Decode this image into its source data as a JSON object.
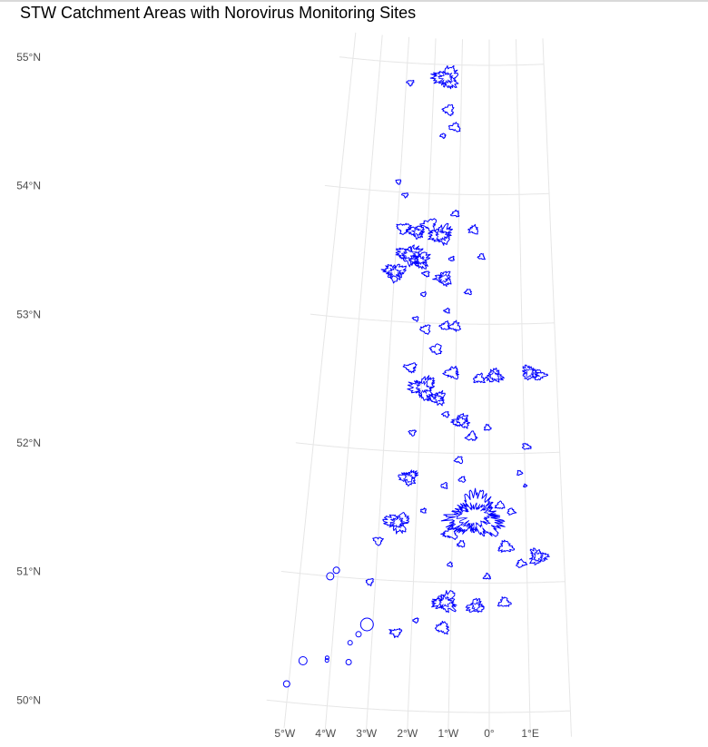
{
  "title": "STW Catchment Areas with Norovirus Monitoring Sites",
  "axes": {
    "lat_labels": [
      "55°N",
      "54°N",
      "53°N",
      "52°N",
      "51°N",
      "50°N"
    ],
    "lon_labels": [
      "5°W",
      "4°W",
      "3°W",
      "2°W",
      "1°W",
      "0°",
      "1°E"
    ]
  },
  "colors": {
    "catchment_outline": "#0000ff",
    "site_marker": "#0000ff",
    "graticule": "#e6e6e6",
    "tick_text": "#4d4d4d"
  },
  "map": {
    "projection": "conic",
    "lat_range": [
      50,
      55
    ],
    "lon_range": [
      -5,
      1
    ],
    "catchments": [
      {
        "lon": -1.55,
        "lat": 54.9,
        "size": 0.22
      },
      {
        "lon": -1.45,
        "lat": 54.65,
        "size": 0.1
      },
      {
        "lon": -1.2,
        "lat": 54.52,
        "size": 0.09
      },
      {
        "lon": -2.85,
        "lat": 54.85,
        "size": 0.06
      },
      {
        "lon": -1.6,
        "lat": 54.45,
        "size": 0.05
      },
      {
        "lon": -3.05,
        "lat": 54.08,
        "size": 0.05
      },
      {
        "lon": -2.8,
        "lat": 53.98,
        "size": 0.05
      },
      {
        "lon": -1.1,
        "lat": 53.85,
        "size": 0.07
      },
      {
        "lon": -2.8,
        "lat": 53.72,
        "size": 0.12
      },
      {
        "lon": -2.35,
        "lat": 53.7,
        "size": 0.14
      },
      {
        "lon": -1.95,
        "lat": 53.76,
        "size": 0.12
      },
      {
        "lon": -1.55,
        "lat": 53.68,
        "size": 0.2
      },
      {
        "lon": -2.55,
        "lat": 53.52,
        "size": 0.2
      },
      {
        "lon": -2.2,
        "lat": 53.48,
        "size": 0.16
      },
      {
        "lon": -3.0,
        "lat": 53.38,
        "size": 0.18
      },
      {
        "lon": -1.45,
        "lat": 53.35,
        "size": 0.14
      },
      {
        "lon": -2.0,
        "lat": 53.38,
        "size": 0.06
      },
      {
        "lon": -1.2,
        "lat": 53.5,
        "size": 0.05
      },
      {
        "lon": -0.5,
        "lat": 53.73,
        "size": 0.09
      },
      {
        "lon": -0.25,
        "lat": 53.52,
        "size": 0.06
      },
      {
        "lon": -0.65,
        "lat": 53.25,
        "size": 0.06
      },
      {
        "lon": -2.05,
        "lat": 53.22,
        "size": 0.05
      },
      {
        "lon": -2.25,
        "lat": 53.03,
        "size": 0.05
      },
      {
        "lon": -1.95,
        "lat": 52.95,
        "size": 0.09
      },
      {
        "lon": -1.35,
        "lat": 52.98,
        "size": 0.09
      },
      {
        "lon": -1.05,
        "lat": 52.98,
        "size": 0.1
      },
      {
        "lon": -1.6,
        "lat": 52.8,
        "size": 0.1
      },
      {
        "lon": -1.3,
        "lat": 53.1,
        "size": 0.05
      },
      {
        "lon": -2.35,
        "lat": 52.65,
        "size": 0.1
      },
      {
        "lon": -1.1,
        "lat": 52.62,
        "size": 0.12
      },
      {
        "lon": -1.95,
        "lat": 52.5,
        "size": 0.22
      },
      {
        "lon": -1.5,
        "lat": 52.42,
        "size": 0.14
      },
      {
        "lon": -0.3,
        "lat": 52.58,
        "size": 0.1
      },
      {
        "lon": 0.15,
        "lat": 52.6,
        "size": 0.14
      },
      {
        "lon": 1.2,
        "lat": 52.62,
        "size": 0.14
      },
      {
        "lon": 1.5,
        "lat": 52.6,
        "size": 0.1
      },
      {
        "lon": -0.8,
        "lat": 52.25,
        "size": 0.14
      },
      {
        "lon": -0.5,
        "lat": 52.13,
        "size": 0.09
      },
      {
        "lon": -1.25,
        "lat": 52.3,
        "size": 0.06
      },
      {
        "lon": -2.2,
        "lat": 52.15,
        "size": 0.06
      },
      {
        "lon": -0.05,
        "lat": 52.2,
        "size": 0.06
      },
      {
        "lon": 1.05,
        "lat": 52.05,
        "size": 0.07
      },
      {
        "lon": -0.85,
        "lat": 51.95,
        "size": 0.07
      },
      {
        "lon": -2.25,
        "lat": 51.8,
        "size": 0.15
      },
      {
        "lon": -1.25,
        "lat": 51.75,
        "size": 0.06
      },
      {
        "lon": -0.75,
        "lat": 51.8,
        "size": 0.06
      },
      {
        "lon": -0.4,
        "lat": 51.52,
        "size": 0.45
      },
      {
        "lon": 0.3,
        "lat": 51.6,
        "size": 0.08
      },
      {
        "lon": 0.6,
        "lat": 51.55,
        "size": 0.07
      },
      {
        "lon": 0.85,
        "lat": 51.85,
        "size": 0.05
      },
      {
        "lon": 1.0,
        "lat": 51.75,
        "size": 0.03
      },
      {
        "lon": -1.8,
        "lat": 51.55,
        "size": 0.05
      },
      {
        "lon": -2.5,
        "lat": 51.45,
        "size": 0.2
      },
      {
        "lon": -3.0,
        "lat": 51.3,
        "size": 0.08
      },
      {
        "lon": -1.05,
        "lat": 51.38,
        "size": 0.12
      },
      {
        "lon": -0.75,
        "lat": 51.3,
        "size": 0.07
      },
      {
        "lon": -0.05,
        "lat": 51.05,
        "size": 0.06
      },
      {
        "lon": 0.45,
        "lat": 51.28,
        "size": 0.12
      },
      {
        "lon": 0.85,
        "lat": 51.15,
        "size": 0.08
      },
      {
        "lon": 1.3,
        "lat": 51.2,
        "size": 0.15
      },
      {
        "lon": -1.05,
        "lat": 51.14,
        "size": 0.05
      },
      {
        "lon": -3.15,
        "lat": 50.98,
        "size": 0.07
      },
      {
        "lon": -1.15,
        "lat": 50.85,
        "size": 0.2
      },
      {
        "lon": -1.2,
        "lat": 50.65,
        "size": 0.12
      },
      {
        "lon": -0.35,
        "lat": 50.82,
        "size": 0.14
      },
      {
        "lon": 0.4,
        "lat": 50.85,
        "size": 0.1
      },
      {
        "lon": -1.9,
        "lat": 50.7,
        "size": 0.05
      },
      {
        "lon": -2.4,
        "lat": 50.6,
        "size": 0.1
      }
    ],
    "sites": [
      {
        "lon": -4.2,
        "lat": 51.0,
        "size": 4
      },
      {
        "lon": -4.05,
        "lat": 51.05,
        "size": 3.5
      },
      {
        "lon": -3.15,
        "lat": 50.65,
        "size": 7
      },
      {
        "lon": -3.35,
        "lat": 50.57,
        "size": 3
      },
      {
        "lon": -3.55,
        "lat": 50.5,
        "size": 2.5
      },
      {
        "lon": -3.55,
        "lat": 50.35,
        "size": 3
      },
      {
        "lon": -4.1,
        "lat": 50.35,
        "size": 2
      },
      {
        "lon": -4.1,
        "lat": 50.37,
        "size": 2
      },
      {
        "lon": -4.7,
        "lat": 50.33,
        "size": 4.5
      },
      {
        "lon": -5.05,
        "lat": 50.14,
        "size": 3.5
      }
    ]
  }
}
